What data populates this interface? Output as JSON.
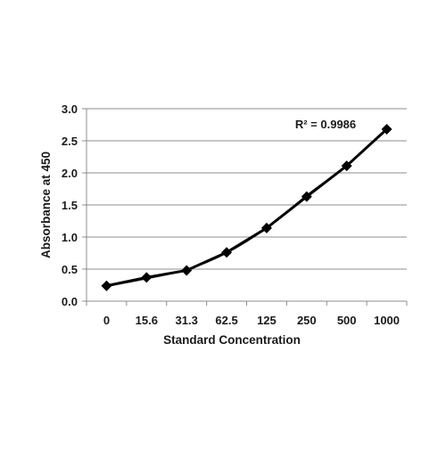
{
  "chart_data": {
    "type": "line",
    "title": "",
    "xlabel": "Standard Concentration",
    "ylabel": "Absorbance at 450",
    "categories": [
      "0",
      "15.6",
      "31.3",
      "62.5",
      "125",
      "250",
      "500",
      "1000"
    ],
    "series": [
      {
        "values": [
          0.24,
          0.37,
          0.48,
          0.76,
          1.14,
          1.63,
          2.11,
          2.68
        ],
        "marker": "diamond",
        "color": "#000000"
      }
    ],
    "trendline": {
      "kind": "polynomial",
      "values": [
        0.23,
        0.35,
        0.49,
        0.75,
        1.14,
        1.65,
        2.12,
        2.68
      ],
      "color": "#333333"
    },
    "annotation": "R² = 0.9986",
    "ylim": [
      0.0,
      3.0
    ],
    "yticks": [
      "0.0",
      "0.5",
      "1.0",
      "1.5",
      "2.0",
      "2.5",
      "3.0"
    ],
    "grid": "horizontal",
    "legend": "none"
  }
}
